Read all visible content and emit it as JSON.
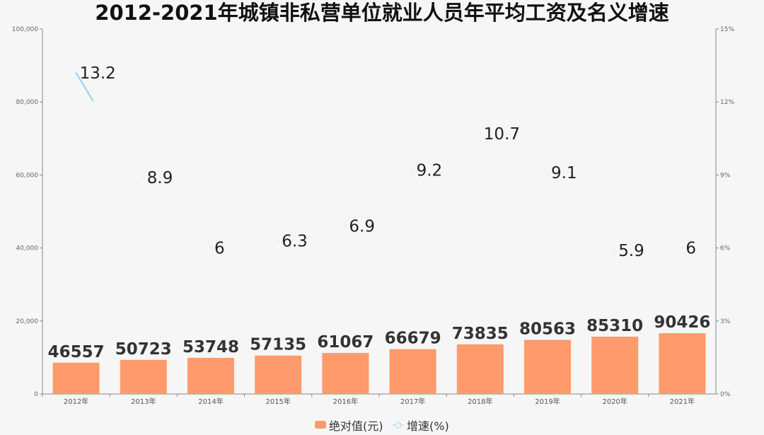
{
  "chart_data": {
    "type": "bar+line",
    "title": "2012-2021年城镇非私营单位就业人员年平均工资及名义增速",
    "categories": [
      "2012年",
      "2013年",
      "2014年",
      "2015年",
      "2016年",
      "2017年",
      "2018年",
      "2019年",
      "2020年",
      "2021年"
    ],
    "series": [
      {
        "name": "绝对值(元)",
        "type": "bar",
        "axis": "left",
        "color": "#ff9a6c",
        "values": [
          46557,
          50723,
          53748,
          57135,
          61067,
          66679,
          73835,
          80563,
          85310,
          90426
        ]
      },
      {
        "name": "增速(%)",
        "type": "line",
        "axis": "right",
        "color": "#a8d4f5",
        "values": [
          13.2,
          8.9,
          6,
          6.3,
          6.9,
          9.2,
          10.7,
          9.1,
          5.9,
          6
        ]
      }
    ],
    "left_axis": {
      "range": [
        0,
        100000
      ],
      "ticks": [
        "0",
        "20,000",
        "40,000",
        "60,000",
        "80,000",
        "100,000"
      ]
    },
    "right_axis": {
      "range": [
        0,
        15
      ],
      "ticks": [
        "0%",
        "3%",
        "6%",
        "9%",
        "12%",
        "15%"
      ]
    },
    "legend": {
      "placement": "bottom",
      "items": [
        "绝对值(元)",
        "增速(%)"
      ]
    },
    "grid": false
  }
}
